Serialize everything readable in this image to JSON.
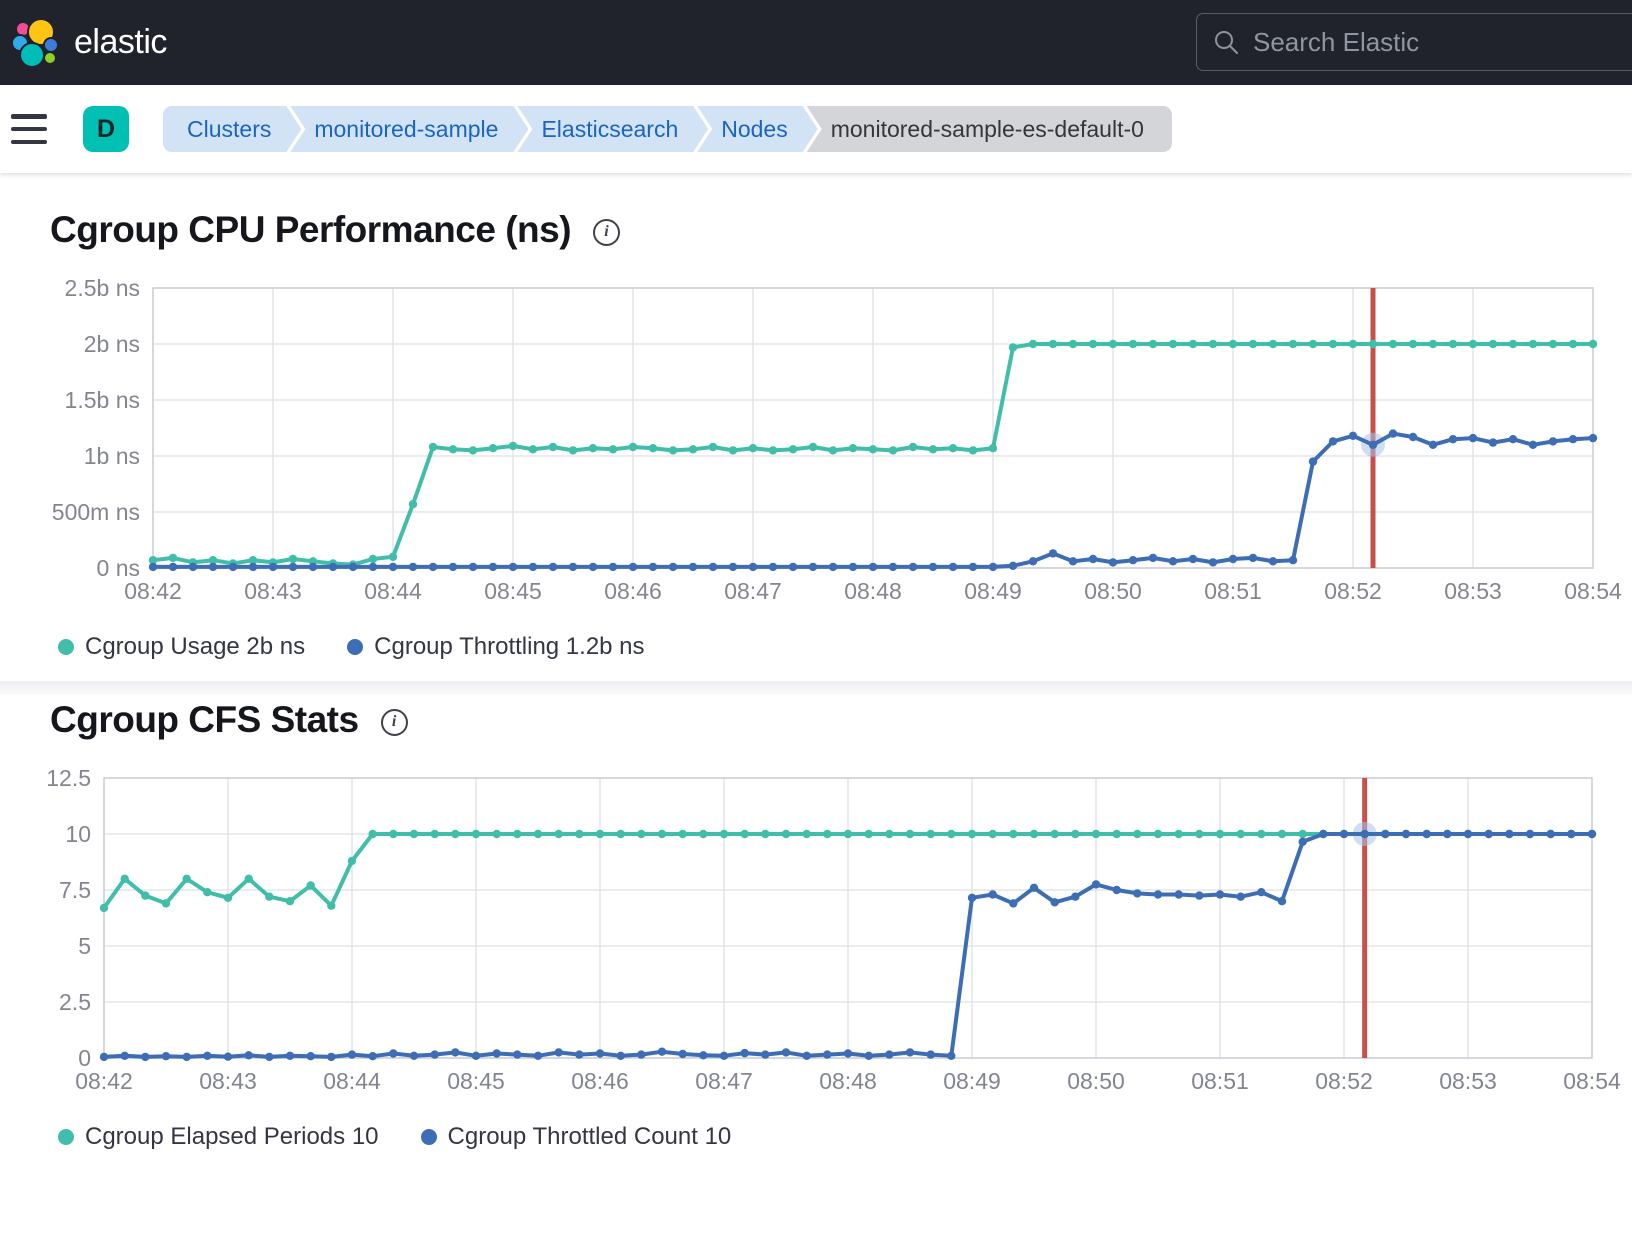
{
  "header": {
    "brand": "elastic",
    "search_placeholder": "Search Elastic"
  },
  "breadcrumbs": {
    "deployment_badge": "D",
    "items": [
      "Clusters",
      "monitored-sample",
      "Elasticsearch",
      "Nodes"
    ],
    "current": "monitored-sample-es-default-0"
  },
  "ui": {
    "info_icon_glyph": "i"
  },
  "colors": {
    "header_bg": "#20232B",
    "badge_teal": "#00BFB3",
    "breadcrumb_bg": "#D2E3F6",
    "breadcrumb_text": "#1B64C2",
    "breadcrumb_current_bg": "#D3D5D9",
    "breadcrumb_current_text": "#33363C",
    "series_teal": "#40BEAA",
    "series_blue": "#3D6DB5",
    "annotation_red": "#C8504B",
    "highlight_halo": "#A7C2E8",
    "grid_line": "#DFE0E4",
    "axis_label": "#84868E"
  },
  "chart_data": [
    {
      "type": "line",
      "title": "Cgroup CPU Performance (ns)",
      "x_tick_labels": [
        "08:42",
        "08:43",
        "08:44",
        "08:45",
        "08:46",
        "08:47",
        "08:48",
        "08:49",
        "08:50",
        "08:51",
        "08:52",
        "08:53",
        "08:54"
      ],
      "sample_interval_seconds": 10,
      "y_tick_labels": [
        "2.5b ns",
        "2b ns",
        "1.5b ns",
        "1b ns",
        "500m ns",
        "0 ns"
      ],
      "y_tick_values": [
        2.5,
        2,
        1.5,
        1,
        0.5,
        0
      ],
      "ylim": [
        0,
        2.5
      ],
      "grid": true,
      "legend_position": "bottom",
      "annotation": {
        "time_offset_seconds": 610,
        "color": "#C8504B"
      },
      "highlight": {
        "series_index": 1,
        "point_index": 61
      },
      "series": [
        {
          "name": "Cgroup Usage",
          "legend_label": "Cgroup Usage 2b ns",
          "color": "#40BEAA",
          "values": [
            0.07,
            0.09,
            0.05,
            0.07,
            0.04,
            0.07,
            0.05,
            0.08,
            0.06,
            0.04,
            0.03,
            0.08,
            0.1,
            0.57,
            1.08,
            1.06,
            1.05,
            1.07,
            1.09,
            1.06,
            1.08,
            1.05,
            1.07,
            1.06,
            1.08,
            1.07,
            1.05,
            1.06,
            1.08,
            1.05,
            1.07,
            1.05,
            1.06,
            1.08,
            1.05,
            1.07,
            1.06,
            1.05,
            1.08,
            1.06,
            1.07,
            1.05,
            1.07,
            1.97,
            2.0,
            2.0,
            2.0,
            2.0,
            2.0,
            2.0,
            2.0,
            2.0,
            2.0,
            2.0,
            2.0,
            2.0,
            2.0,
            2.0,
            2.0,
            2.0,
            2.0,
            2.0,
            2.0,
            2.0,
            2.0,
            2.0,
            2.0,
            2.0,
            2.0,
            2.0,
            2.0,
            2.0,
            2.0
          ]
        },
        {
          "name": "Cgroup Throttling",
          "legend_label": "Cgroup Throttling 1.2b ns",
          "color": "#3D6DB5",
          "values": [
            0.01,
            0.01,
            0.01,
            0.01,
            0.01,
            0.01,
            0.01,
            0.01,
            0.01,
            0.01,
            0.01,
            0.01,
            0.01,
            0.01,
            0.01,
            0.01,
            0.01,
            0.01,
            0.01,
            0.01,
            0.01,
            0.01,
            0.01,
            0.01,
            0.01,
            0.01,
            0.01,
            0.01,
            0.01,
            0.01,
            0.01,
            0.01,
            0.01,
            0.01,
            0.01,
            0.01,
            0.01,
            0.01,
            0.01,
            0.01,
            0.01,
            0.01,
            0.01,
            0.02,
            0.06,
            0.13,
            0.06,
            0.08,
            0.05,
            0.07,
            0.09,
            0.06,
            0.08,
            0.05,
            0.08,
            0.09,
            0.06,
            0.07,
            0.95,
            1.13,
            1.18,
            1.1,
            1.2,
            1.17,
            1.1,
            1.15,
            1.16,
            1.12,
            1.15,
            1.1,
            1.13,
            1.15,
            1.16
          ]
        }
      ]
    },
    {
      "type": "line",
      "title": "Cgroup CFS Stats",
      "x_tick_labels": [
        "08:42",
        "08:43",
        "08:44",
        "08:45",
        "08:46",
        "08:47",
        "08:48",
        "08:49",
        "08:50",
        "08:51",
        "08:52",
        "08:53",
        "08:54"
      ],
      "sample_interval_seconds": 10,
      "y_tick_labels": [
        "12.5",
        "10",
        "7.5",
        "5",
        "2.5",
        "0"
      ],
      "y_tick_values": [
        12.5,
        10,
        7.5,
        5,
        2.5,
        0
      ],
      "ylim": [
        0,
        12.5
      ],
      "grid": true,
      "legend_position": "bottom",
      "annotation": {
        "time_offset_seconds": 610,
        "color": "#C8504B"
      },
      "highlight": {
        "series_index": 1,
        "point_index": 61
      },
      "series": [
        {
          "name": "Cgroup Elapsed Periods",
          "legend_label": "Cgroup Elapsed Periods 10",
          "color": "#40BEAA",
          "values": [
            6.7,
            8.0,
            7.25,
            6.9,
            8.0,
            7.4,
            7.15,
            8.0,
            7.2,
            7.0,
            7.7,
            6.8,
            8.8,
            10,
            10,
            10,
            10,
            10,
            10,
            10,
            10,
            10,
            10,
            10,
            10,
            10,
            10,
            10,
            10,
            10,
            10,
            10,
            10,
            10,
            10,
            10,
            10,
            10,
            10,
            10,
            10,
            10,
            10,
            10,
            10,
            10,
            10,
            10,
            10,
            10,
            10,
            10,
            10,
            10,
            10,
            10,
            10,
            10,
            10,
            10,
            10,
            10,
            10,
            10,
            10,
            10,
            10,
            10,
            10,
            10,
            10,
            10,
            10
          ]
        },
        {
          "name": "Cgroup Throttled Count",
          "legend_label": "Cgroup Throttled Count 10",
          "color": "#3D6DB5",
          "values": [
            0.05,
            0.1,
            0.05,
            0.08,
            0.05,
            0.1,
            0.06,
            0.12,
            0.05,
            0.1,
            0.08,
            0.05,
            0.15,
            0.08,
            0.2,
            0.1,
            0.15,
            0.25,
            0.1,
            0.2,
            0.15,
            0.1,
            0.25,
            0.15,
            0.2,
            0.1,
            0.15,
            0.28,
            0.18,
            0.12,
            0.1,
            0.22,
            0.15,
            0.25,
            0.1,
            0.15,
            0.2,
            0.1,
            0.15,
            0.25,
            0.15,
            0.1,
            7.15,
            7.3,
            6.9,
            7.6,
            6.95,
            7.2,
            7.75,
            7.5,
            7.35,
            7.3,
            7.3,
            7.25,
            7.3,
            7.2,
            7.4,
            7.0,
            9.65,
            10,
            10,
            10,
            10,
            10,
            10,
            10,
            10,
            10,
            10,
            10,
            10,
            10,
            10
          ]
        }
      ]
    }
  ]
}
